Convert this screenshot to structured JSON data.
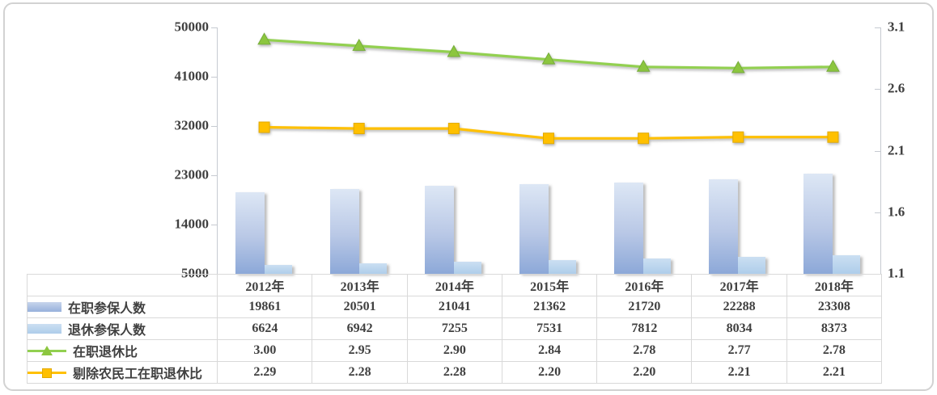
{
  "chart_data": {
    "type": "bar",
    "subtype": "clustered-bar-with-two-lines-and-data-table",
    "title": "",
    "categories": [
      "2012年",
      "2013年",
      "2014年",
      "2015年",
      "2016年",
      "2017年",
      "2018年"
    ],
    "series": [
      {
        "name": "在职参保人数",
        "type": "bar",
        "axis": "left",
        "values": [
          19861,
          20501,
          21041,
          21362,
          21720,
          22288,
          23308
        ],
        "labels": [
          "19861",
          "20501",
          "21041",
          "21362",
          "21720",
          "22288",
          "23308"
        ]
      },
      {
        "name": "退休参保人数",
        "type": "bar",
        "axis": "left",
        "values": [
          6624,
          6942,
          7255,
          7531,
          7812,
          8034,
          8373
        ],
        "labels": [
          "6624",
          "6942",
          "7255",
          "7531",
          "7812",
          "8034",
          "8373"
        ]
      },
      {
        "name": "在职退休比",
        "type": "line",
        "marker": "triangle",
        "axis": "right",
        "values": [
          3.0,
          2.95,
          2.9,
          2.84,
          2.78,
          2.77,
          2.78
        ],
        "labels": [
          "3.00",
          "2.95",
          "2.90",
          "2.84",
          "2.78",
          "2.77",
          "2.78"
        ]
      },
      {
        "name": "剔除农民工在职退休比",
        "type": "line",
        "marker": "square",
        "axis": "right",
        "values": [
          2.29,
          2.28,
          2.28,
          2.2,
          2.2,
          2.21,
          2.21
        ],
        "labels": [
          "2.29",
          "2.28",
          "2.28",
          "2.20",
          "2.20",
          "2.21",
          "2.21"
        ]
      }
    ],
    "left_axis": {
      "min": 5000,
      "max": 50000,
      "tick_values": [
        5000,
        14000,
        23000,
        32000,
        41000,
        50000
      ],
      "tick_labels": [
        "5000",
        "14000",
        "23000",
        "32000",
        "41000",
        "50000"
      ]
    },
    "right_axis": {
      "min": 1.1,
      "max": 3.1,
      "tick_values": [
        1.1,
        1.6,
        2.1,
        2.6,
        3.1
      ],
      "tick_labels": [
        "1.1",
        "1.6",
        "2.1",
        "2.6",
        "3.1"
      ]
    },
    "grid": false,
    "legend_position": "data-table-left-column"
  },
  "colors": {
    "bar1_top": "#dde7f5",
    "bar1_bottom": "#8ca8d8",
    "bar2_top": "#cbdff2",
    "bar2_bottom": "#aecdea",
    "line_green": "#92d050",
    "marker_green": "#8cc63f",
    "marker_green_stroke": "#76ad3a",
    "line_orange": "#ffc000",
    "marker_orange_stroke": "#e2aa00",
    "axis": "#c6cad1",
    "table_border": "#d9d9d9",
    "text": "#404040",
    "frame_border": "#d2d2d2"
  }
}
